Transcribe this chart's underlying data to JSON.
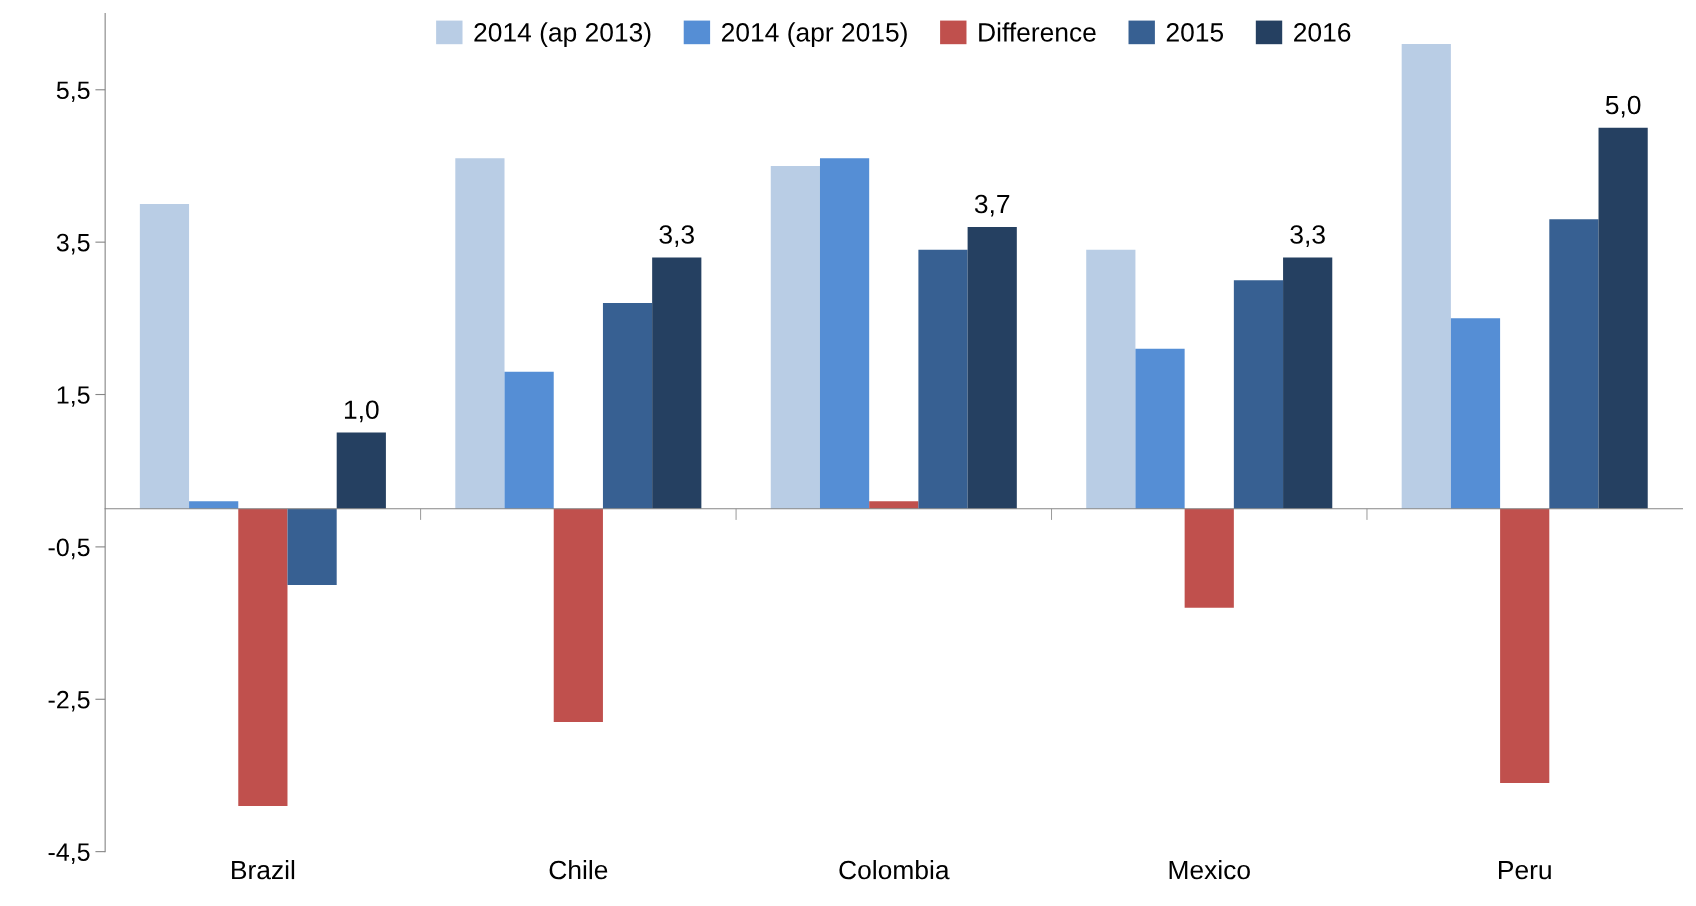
{
  "chart_data": {
    "type": "bar",
    "categories": [
      "Brazil",
      "Chile",
      "Colombia",
      "Mexico",
      "Peru"
    ],
    "series": [
      {
        "name": "2014 (ap 2013)",
        "color": "#b9cde5",
        "values": [
          4.0,
          4.6,
          4.5,
          3.4,
          6.1
        ]
      },
      {
        "name": "2014 (apr 2015)",
        "color": "#558ed5",
        "values": [
          0.1,
          1.8,
          4.6,
          2.1,
          2.5
        ]
      },
      {
        "name": "Difference",
        "color": "#c0504d",
        "values": [
          -3.9,
          -2.8,
          0.1,
          -1.3,
          -3.6
        ]
      },
      {
        "name": "2015",
        "color": "#376092",
        "values": [
          -1.0,
          2.7,
          3.4,
          3.0,
          3.8
        ]
      },
      {
        "name": "2016",
        "color": "#254061",
        "values": [
          1.0,
          3.3,
          3.7,
          3.3,
          5.0
        ],
        "value_labels": [
          "1,0",
          "3,3",
          "3,7",
          "3,3",
          "5,0"
        ]
      }
    ],
    "ylim": [
      -4.5,
      6.5
    ],
    "yticks": [
      {
        "value": -4.5,
        "label": "-4,5"
      },
      {
        "value": -2.5,
        "label": "-2,5"
      },
      {
        "value": -0.5,
        "label": "-0,5"
      },
      {
        "value": 1.5,
        "label": "1,5"
      },
      {
        "value": 3.5,
        "label": "3,5"
      },
      {
        "value": 5.5,
        "label": "5,5"
      }
    ],
    "grid": false,
    "legend": "top"
  }
}
